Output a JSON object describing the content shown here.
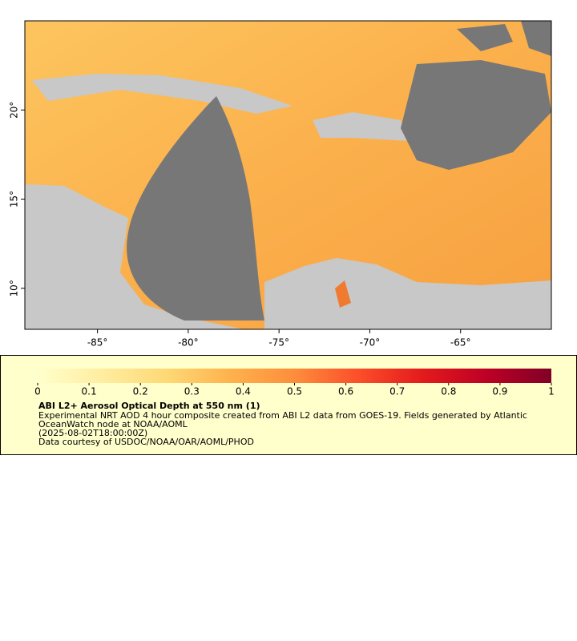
{
  "chart_data": {
    "type": "map",
    "xlim": [
      -89,
      -60
    ],
    "ylim": [
      7.7,
      25
    ],
    "xticks": [
      {
        "value": -85,
        "label": "-85°"
      },
      {
        "value": -80,
        "label": "-80°"
      },
      {
        "value": -75,
        "label": "-75°"
      },
      {
        "value": -70,
        "label": "-70°"
      },
      {
        "value": -65,
        "label": "-65°"
      }
    ],
    "yticks": [
      {
        "value": 10,
        "label": "10°"
      },
      {
        "value": 15,
        "label": "15°"
      },
      {
        "value": 20,
        "label": "20°"
      }
    ],
    "colorbar": {
      "lim": [
        0,
        1
      ],
      "ticks": [
        0,
        0.1,
        0.2,
        0.3,
        0.4,
        0.5,
        0.6,
        0.7,
        0.8,
        0.9,
        1
      ],
      "colors": [
        "#ffffcc",
        "#ffeda0",
        "#fed976",
        "#feb24c",
        "#fd8d3c",
        "#fc4e2a",
        "#e31a1c",
        "#bd0026",
        "#800026"
      ]
    },
    "legend": {
      "title": "ABI L2+ Aerosol Optical Depth at 550 nm (1)",
      "lines": [
        "Experimental NRT AOD 4 hour composite created from ABI L2 data from GOES-19. Fields generated by Atlantic",
        "OceanWatch node at NOAA/AOML",
        "(2025-08-02T18:00:00Z)",
        "Data courtesy of USDOC/NOAA/OAR/AOML/PHOD"
      ]
    }
  }
}
